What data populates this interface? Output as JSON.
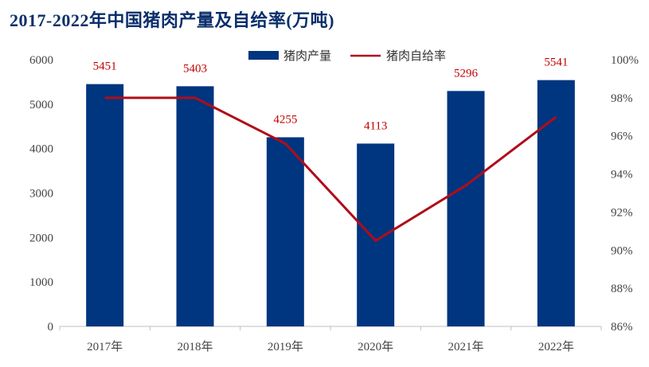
{
  "title": "2017-2022年中国猪肉产量及自给率(万吨)",
  "legend": {
    "bar_label": "猪肉产量",
    "line_label": "猪肉自给率"
  },
  "colors": {
    "bar": "#003580",
    "line": "#b00d1a",
    "data_label": "#c00000",
    "title": "#0b2f6b"
  },
  "chart_data": {
    "type": "bar",
    "categories": [
      "2017年",
      "2018年",
      "2019年",
      "2020年",
      "2021年",
      "2022年"
    ],
    "series": [
      {
        "name": "猪肉产量",
        "type": "bar",
        "axis": "left",
        "values": [
          5451,
          5403,
          4255,
          4113,
          5296,
          5541
        ]
      },
      {
        "name": "猪肉自给率",
        "type": "line",
        "axis": "right",
        "values": [
          98.0,
          98.0,
          95.6,
          90.5,
          93.4,
          97.0
        ]
      }
    ],
    "y_left": {
      "min": 0,
      "max": 6000,
      "step": 1000,
      "ticks": [
        "0",
        "1000",
        "2000",
        "3000",
        "4000",
        "5000",
        "6000"
      ]
    },
    "y_right": {
      "min": 86,
      "max": 100,
      "step": 2,
      "ticks": [
        "86%",
        "88%",
        "90%",
        "92%",
        "94%",
        "96%",
        "98%",
        "100%"
      ]
    },
    "data_labels": [
      "5451",
      "5403",
      "4255",
      "4113",
      "5296",
      "5541"
    ],
    "grid": false,
    "legend_position": "top-center"
  }
}
